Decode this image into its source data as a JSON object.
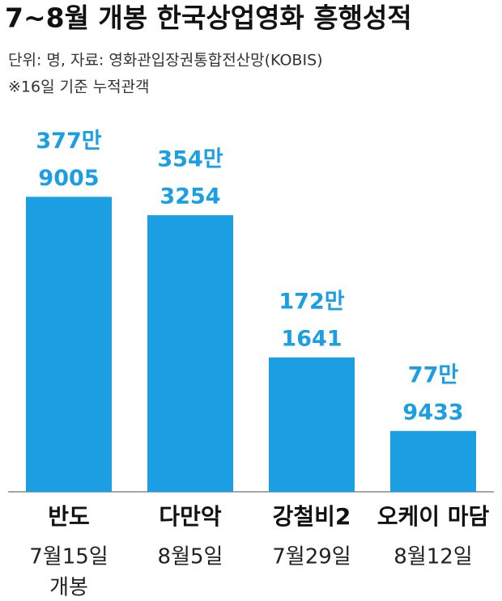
{
  "chart_data": {
    "type": "bar",
    "title": "7~8월 개봉 한국상업영화 흥행성적",
    "subtitle": [
      "단위: 명, 자료: 영화관입장권통합전산망(KOBIS)",
      "※16일 기준 누적관객"
    ],
    "categories": [
      "반도",
      "다만악",
      "강철비2",
      "오케이 마담"
    ],
    "sub_labels": [
      [
        "7월15일",
        "개봉"
      ],
      [
        "8월5일"
      ],
      [
        "7월29일"
      ],
      [
        "8월12일"
      ]
    ],
    "values": [
      3779005,
      3543254,
      1721641,
      779433
    ],
    "value_labels": [
      [
        "377만",
        "9005"
      ],
      [
        "354만",
        "3254"
      ],
      [
        "172만",
        "1641"
      ],
      [
        "77만",
        "9433"
      ]
    ],
    "color": "#1b9ee2",
    "ylim": [
      0,
      4000000
    ]
  }
}
